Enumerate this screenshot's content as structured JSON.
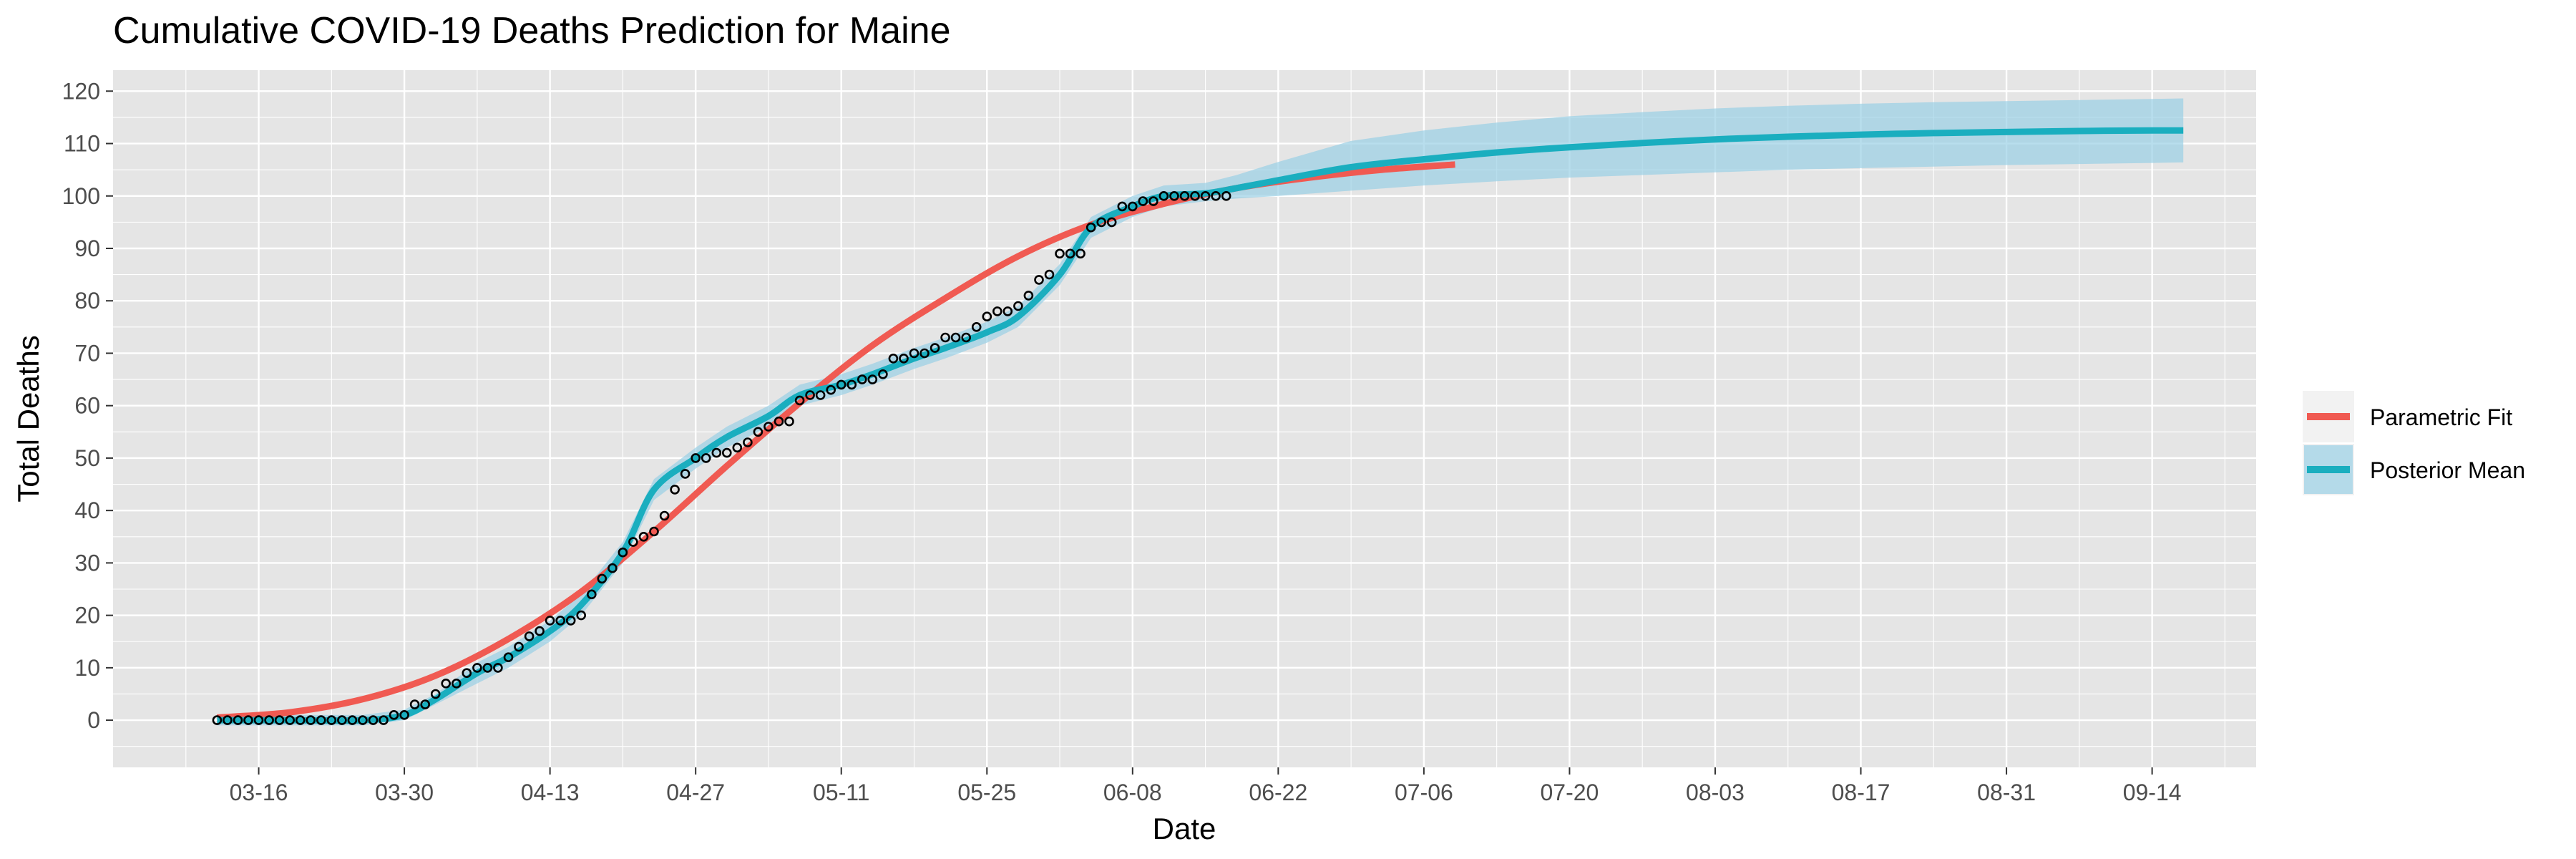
{
  "chart_data": {
    "type": "line",
    "title": "Cumulative COVID-19 Deaths Prediction for Maine",
    "xlabel": "Date",
    "ylabel": "Total Deaths",
    "x_axis": {
      "type": "date",
      "range": [
        "2020-03-02",
        "2020-09-24"
      ],
      "tick_labels": [
        "03-16",
        "03-30",
        "04-13",
        "04-27",
        "05-11",
        "05-25",
        "06-08",
        "06-22",
        "07-06",
        "07-20",
        "08-03",
        "08-17",
        "08-31",
        "09-14"
      ],
      "tick_dates": [
        "2020-03-16",
        "2020-03-30",
        "2020-04-13",
        "2020-04-27",
        "2020-05-11",
        "2020-05-25",
        "2020-06-08",
        "2020-06-22",
        "2020-07-06",
        "2020-07-20",
        "2020-08-03",
        "2020-08-17",
        "2020-08-31",
        "2020-09-14"
      ]
    },
    "y_axis": {
      "range": [
        -9,
        124
      ],
      "ticks": [
        0,
        10,
        20,
        30,
        40,
        50,
        60,
        70,
        80,
        90,
        100,
        110,
        120
      ]
    },
    "grid": true,
    "legend": {
      "position": "right"
    },
    "colors": {
      "panel_bg": "#e5e5e5",
      "grid": "#ffffff",
      "parametric": "#f05a52",
      "posterior": "#1aaebf",
      "band": "#9ad0e6",
      "band_opacity": 0.7,
      "points_stroke": "#000000"
    },
    "series": [
      {
        "name": "Observed",
        "kind": "points",
        "x": [
          "2020-03-12",
          "2020-03-13",
          "2020-03-14",
          "2020-03-15",
          "2020-03-16",
          "2020-03-17",
          "2020-03-18",
          "2020-03-19",
          "2020-03-20",
          "2020-03-21",
          "2020-03-22",
          "2020-03-23",
          "2020-03-24",
          "2020-03-25",
          "2020-03-26",
          "2020-03-27",
          "2020-03-28",
          "2020-03-29",
          "2020-03-30",
          "2020-03-31",
          "2020-04-01",
          "2020-04-02",
          "2020-04-03",
          "2020-04-04",
          "2020-04-05",
          "2020-04-06",
          "2020-04-07",
          "2020-04-08",
          "2020-04-09",
          "2020-04-10",
          "2020-04-11",
          "2020-04-12",
          "2020-04-13",
          "2020-04-14",
          "2020-04-15",
          "2020-04-16",
          "2020-04-17",
          "2020-04-18",
          "2020-04-19",
          "2020-04-20",
          "2020-04-21",
          "2020-04-22",
          "2020-04-23",
          "2020-04-24",
          "2020-04-25",
          "2020-04-26",
          "2020-04-27",
          "2020-04-28",
          "2020-04-29",
          "2020-04-30",
          "2020-05-01",
          "2020-05-02",
          "2020-05-03",
          "2020-05-04",
          "2020-05-05",
          "2020-05-06",
          "2020-05-07",
          "2020-05-08",
          "2020-05-09",
          "2020-05-10",
          "2020-05-11",
          "2020-05-12",
          "2020-05-13",
          "2020-05-14",
          "2020-05-15",
          "2020-05-16",
          "2020-05-17",
          "2020-05-18",
          "2020-05-19",
          "2020-05-20",
          "2020-05-21",
          "2020-05-22",
          "2020-05-23",
          "2020-05-24",
          "2020-05-25",
          "2020-05-26",
          "2020-05-27",
          "2020-05-28",
          "2020-05-29",
          "2020-05-30",
          "2020-05-31",
          "2020-06-01",
          "2020-06-02",
          "2020-06-03",
          "2020-06-04",
          "2020-06-05",
          "2020-06-06",
          "2020-06-07",
          "2020-06-08",
          "2020-06-09",
          "2020-06-10",
          "2020-06-11",
          "2020-06-12",
          "2020-06-13",
          "2020-06-14",
          "2020-06-15",
          "2020-06-16",
          "2020-06-17"
        ],
        "y": [
          0,
          0,
          0,
          0,
          0,
          0,
          0,
          0,
          0,
          0,
          0,
          0,
          0,
          0,
          0,
          0,
          0,
          1,
          1,
          3,
          3,
          5,
          7,
          7,
          9,
          10,
          10,
          10,
          12,
          14,
          16,
          17,
          19,
          19,
          19,
          20,
          24,
          27,
          29,
          32,
          34,
          35,
          36,
          39,
          44,
          47,
          50,
          50,
          51,
          51,
          52,
          53,
          55,
          56,
          57,
          57,
          61,
          62,
          62,
          63,
          64,
          64,
          65,
          65,
          66,
          69,
          69,
          70,
          70,
          71,
          73,
          73,
          73,
          75,
          77,
          78,
          78,
          79,
          81,
          84,
          85,
          89,
          89,
          89,
          94,
          95,
          95,
          98,
          98,
          99,
          99,
          100,
          100,
          100,
          100,
          100,
          100,
          100
        ]
      },
      {
        "name": "Parametric Fit",
        "kind": "line",
        "x": [
          "2020-03-12",
          "2020-03-19",
          "2020-03-26",
          "2020-04-02",
          "2020-04-09",
          "2020-04-16",
          "2020-04-23",
          "2020-04-30",
          "2020-05-07",
          "2020-05-14",
          "2020-05-21",
          "2020-05-28",
          "2020-06-04",
          "2020-06-11",
          "2020-06-18",
          "2020-06-25",
          "2020-07-02",
          "2020-07-09"
        ],
        "y": [
          0.5,
          1.5,
          4.0,
          8.5,
          15.5,
          24.5,
          36.0,
          48.5,
          60.5,
          71.5,
          80.5,
          88.5,
          94.5,
          98.5,
          101.5,
          103.5,
          105.0,
          106.0
        ]
      },
      {
        "name": "Posterior Mean",
        "kind": "line",
        "x": [
          "2020-03-12",
          "2020-03-19",
          "2020-03-26",
          "2020-03-30",
          "2020-04-02",
          "2020-04-06",
          "2020-04-09",
          "2020-04-13",
          "2020-04-16",
          "2020-04-20",
          "2020-04-23",
          "2020-04-27",
          "2020-04-30",
          "2020-05-04",
          "2020-05-07",
          "2020-05-11",
          "2020-05-14",
          "2020-05-18",
          "2020-05-21",
          "2020-05-25",
          "2020-05-28",
          "2020-06-01",
          "2020-06-04",
          "2020-06-08",
          "2020-06-11",
          "2020-06-15",
          "2020-06-18",
          "2020-06-22",
          "2020-06-29",
          "2020-07-06",
          "2020-07-13",
          "2020-07-20",
          "2020-07-27",
          "2020-08-03",
          "2020-08-10",
          "2020-08-17",
          "2020-08-24",
          "2020-08-31",
          "2020-09-07",
          "2020-09-14",
          "2020-09-17"
        ],
        "y": [
          0,
          0,
          0,
          1,
          4,
          9,
          12,
          17,
          22,
          32,
          44,
          50,
          54,
          58,
          62,
          64,
          66,
          69,
          71,
          74,
          77,
          85,
          94,
          98,
          100,
          100.5,
          101.5,
          103.0,
          105.5,
          107.0,
          108.3,
          109.3,
          110.1,
          110.8,
          111.3,
          111.7,
          112.0,
          112.2,
          112.4,
          112.5,
          112.5
        ]
      }
    ],
    "ribbon": {
      "name": "Posterior Band",
      "x": [
        "2020-03-12",
        "2020-03-19",
        "2020-03-26",
        "2020-03-30",
        "2020-04-02",
        "2020-04-06",
        "2020-04-09",
        "2020-04-13",
        "2020-04-16",
        "2020-04-20",
        "2020-04-23",
        "2020-04-27",
        "2020-04-30",
        "2020-05-04",
        "2020-05-07",
        "2020-05-11",
        "2020-05-14",
        "2020-05-18",
        "2020-05-21",
        "2020-05-25",
        "2020-05-28",
        "2020-06-01",
        "2020-06-04",
        "2020-06-08",
        "2020-06-11",
        "2020-06-15",
        "2020-06-18",
        "2020-06-22",
        "2020-06-29",
        "2020-07-06",
        "2020-07-13",
        "2020-07-20",
        "2020-07-27",
        "2020-08-03",
        "2020-08-10",
        "2020-08-17",
        "2020-08-24",
        "2020-08-31",
        "2020-09-07",
        "2020-09-14",
        "2020-09-17"
      ],
      "lower": [
        -1,
        -1,
        -1,
        0,
        3,
        7,
        10,
        15,
        20,
        30,
        42,
        48,
        52,
        56,
        60,
        62,
        64,
        67,
        69,
        72,
        75,
        83,
        92,
        96,
        98,
        99,
        99.5,
        100.0,
        101.0,
        102.0,
        102.8,
        103.5,
        104.0,
        104.5,
        105.0,
        105.3,
        105.6,
        105.9,
        106.1,
        106.3,
        106.4
      ],
      "upper": [
        1,
        1,
        1,
        2,
        5,
        11,
        14,
        19,
        24,
        34,
        46,
        52,
        56,
        60,
        64,
        66,
        68,
        71,
        73,
        76,
        79,
        87,
        96,
        100,
        102,
        102.5,
        104,
        106.5,
        110.5,
        112.5,
        114.0,
        115.2,
        116.0,
        116.7,
        117.2,
        117.6,
        117.9,
        118.1,
        118.3,
        118.5,
        118.6
      ]
    },
    "legend_entries": [
      "Parametric Fit",
      "Posterior Mean"
    ]
  }
}
